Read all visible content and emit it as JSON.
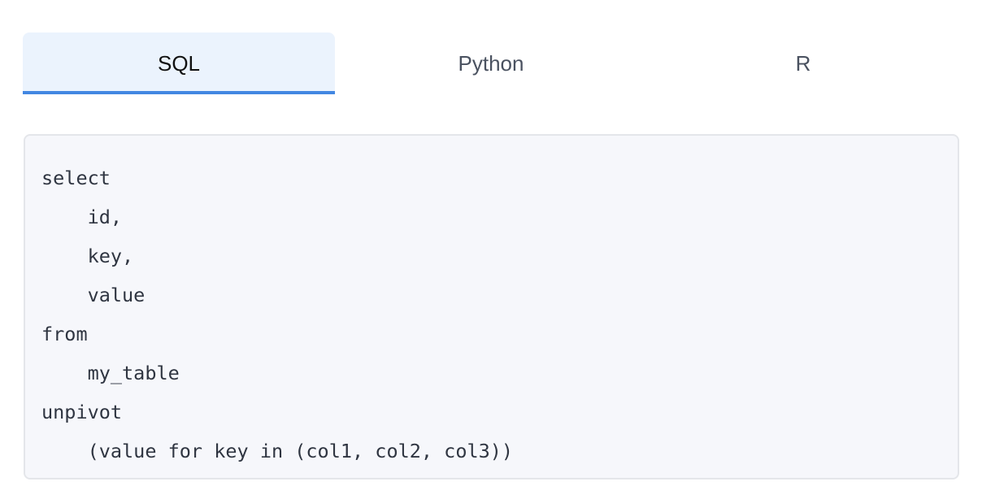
{
  "tabs": [
    {
      "label": "SQL",
      "active": true
    },
    {
      "label": "Python",
      "active": false
    },
    {
      "label": "R",
      "active": false
    }
  ],
  "accent": "#4287e2",
  "code": "select\n    id,\n    key,\n    value\nfrom\n    my_table\nunpivot\n    (value for key in (col1, col2, col3))"
}
